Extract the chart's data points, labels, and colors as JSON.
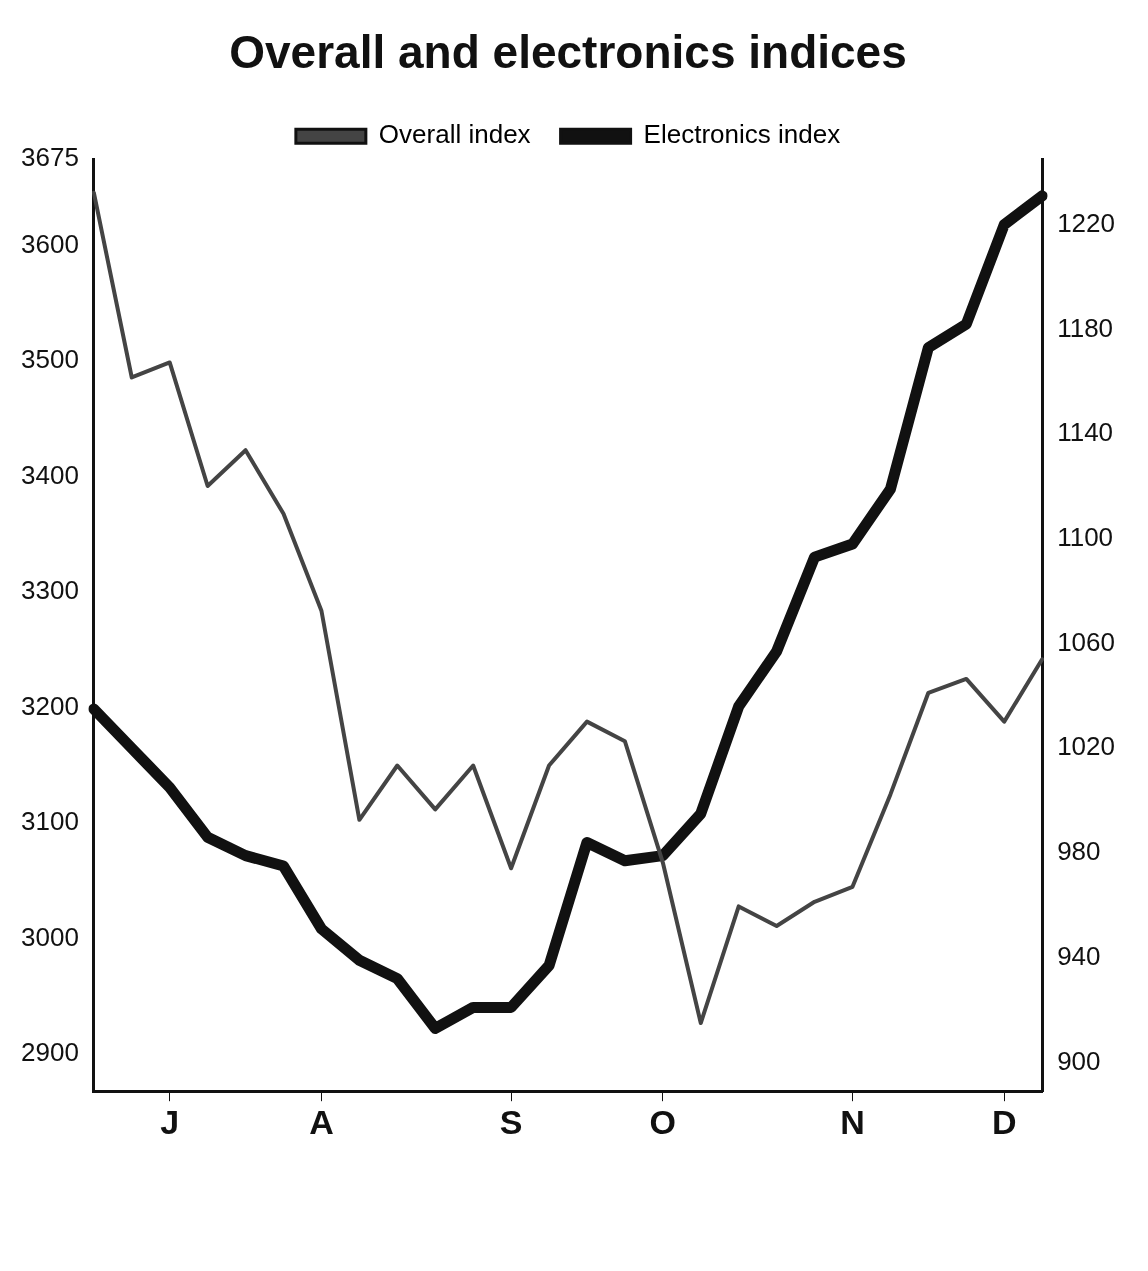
{
  "chart_data": {
    "type": "line",
    "title": "Overall and electronics indices",
    "categories": [
      null,
      null,
      "J",
      null,
      null,
      null,
      "A",
      null,
      null,
      null,
      null,
      "S",
      null,
      null,
      null,
      "O",
      null,
      null,
      null,
      null,
      "N",
      null,
      null,
      null,
      "D",
      null
    ],
    "ylim": [
      2868,
      3675
    ],
    "yticks": [
      2900,
      3000,
      3100,
      3200,
      3300,
      3400,
      3500,
      3600,
      3675
    ],
    "y2lim": [
      889,
      1245
    ],
    "y2ticks": [
      900,
      940,
      980,
      1020,
      1060,
      1100,
      1140,
      1180,
      1220
    ],
    "legend": "top",
    "grid": false,
    "marker": "none",
    "line_style": "solid",
    "series": [
      {
        "name": "Overall index",
        "color": "#444444",
        "values": [
          3646,
          3486,
          3499,
          3392,
          3423,
          3368,
          3284,
          3103,
          3150,
          3112,
          3150,
          3061,
          3150,
          3188,
          3171,
          3066,
          2927,
          3028,
          3011,
          3032,
          3045,
          3125,
          3213,
          3225,
          3188,
          3242
        ]
      },
      {
        "name": "Electronics index",
        "color": "#111111",
        "axis": "y2",
        "values": [
          1035,
          1020,
          1005,
          986,
          979,
          975,
          951,
          939,
          932,
          913,
          921,
          921,
          937,
          984,
          977,
          979,
          995,
          1036,
          1057,
          1093,
          1098,
          1119,
          1173,
          1182,
          1220,
          1231
        ]
      }
    ]
  }
}
